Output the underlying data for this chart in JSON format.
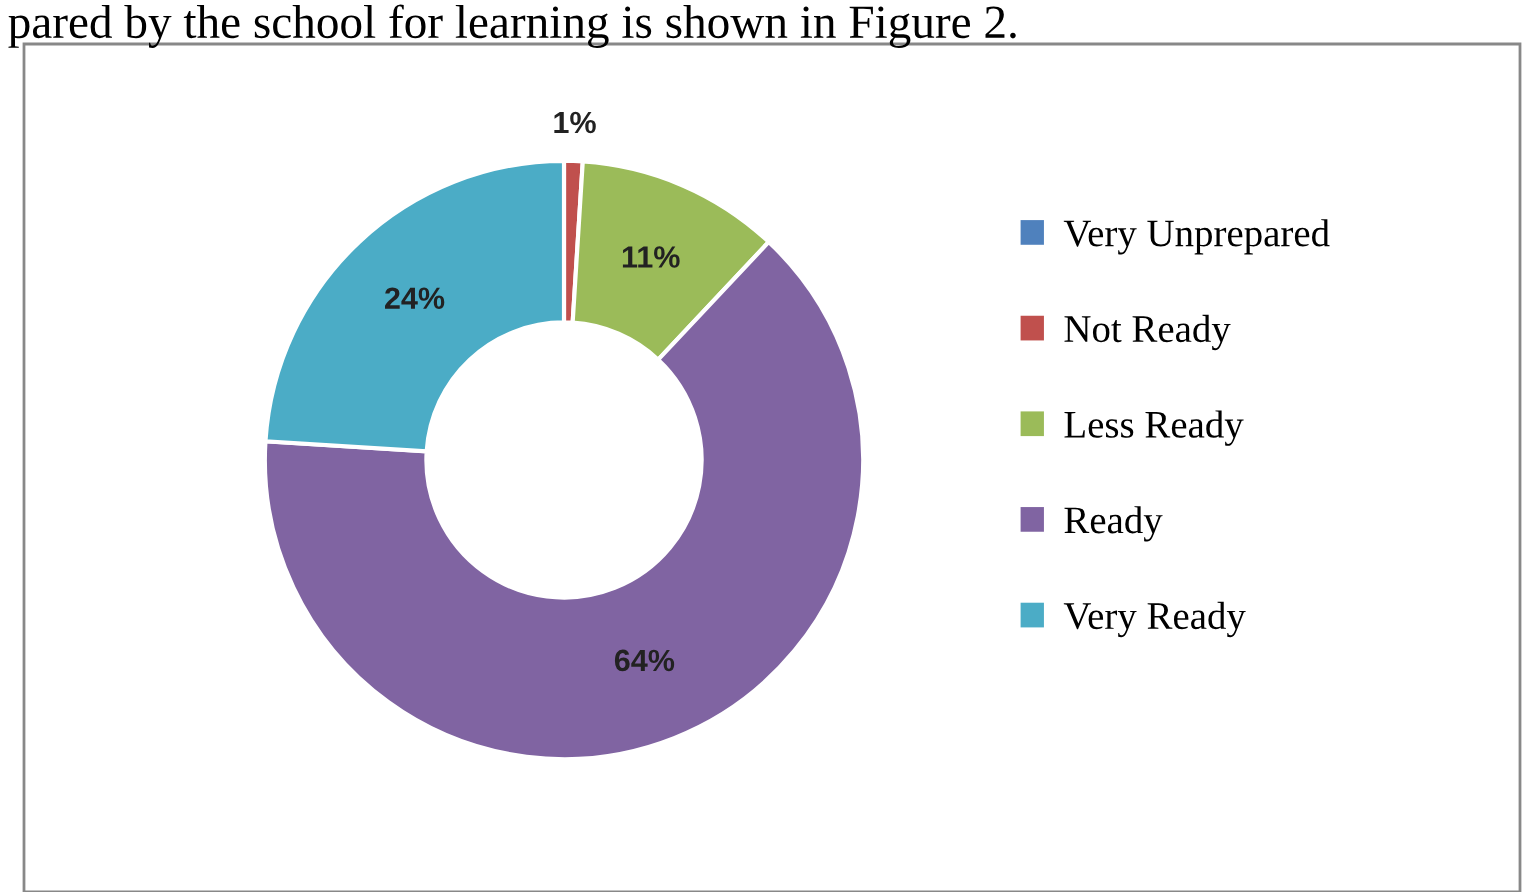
{
  "chart_data": {
    "type": "donut",
    "categories": [
      "Very Unprepared",
      "Not Ready",
      "Less Ready",
      "Ready",
      "Very Ready"
    ],
    "values": [
      0,
      1,
      11,
      64,
      24
    ],
    "colors": [
      "#4f81bd",
      "#c0504d",
      "#9bbb59",
      "#8064a2",
      "#4bacc6"
    ],
    "value_labels": [
      null,
      "1%",
      "11%",
      "64%",
      "24%"
    ],
    "legend": "right",
    "annotations": [
      "pared by the school for learning is shown in Figure 2."
    ]
  }
}
